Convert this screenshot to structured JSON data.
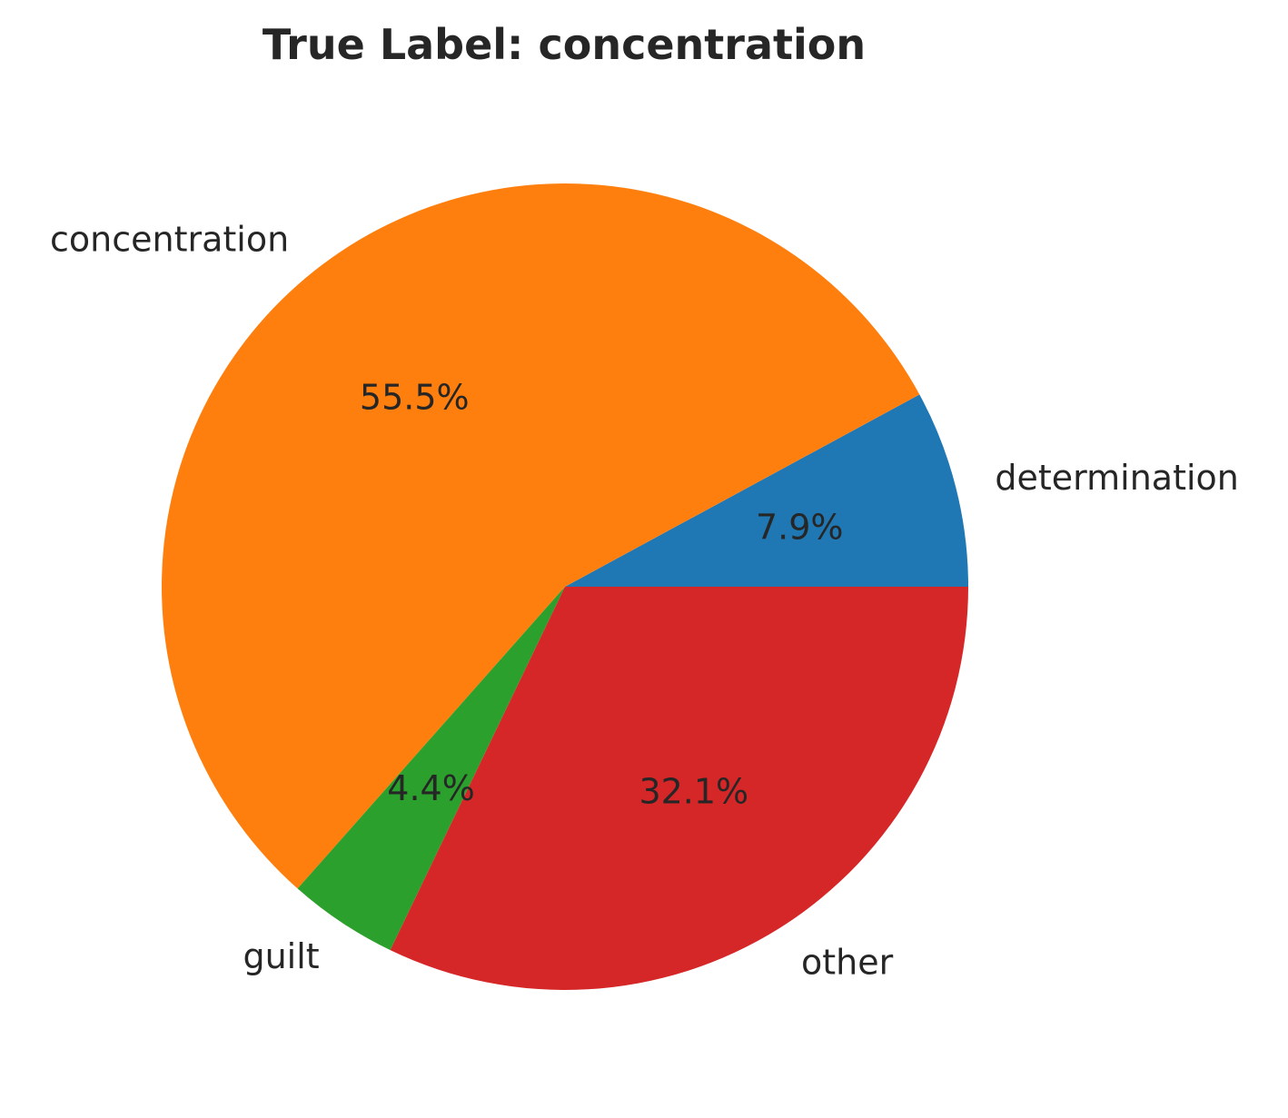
{
  "chart_data": {
    "type": "pie",
    "title": "True Label: concentration",
    "slices": [
      {
        "label": "determination",
        "value": 7.9,
        "pct_label": "7.9%",
        "color": "#1f77b4"
      },
      {
        "label": "concentration",
        "value": 55.5,
        "pct_label": "55.5%",
        "color": "#ff7f0e"
      },
      {
        "label": "guilt",
        "value": 4.4,
        "pct_label": "4.4%",
        "color": "#2ca02c"
      },
      {
        "label": "other",
        "value": 32.1,
        "pct_label": "32.1%",
        "color": "#d62728"
      }
    ],
    "start_angle_deg": 0,
    "direction": "counterclockwise",
    "legend": "none"
  }
}
